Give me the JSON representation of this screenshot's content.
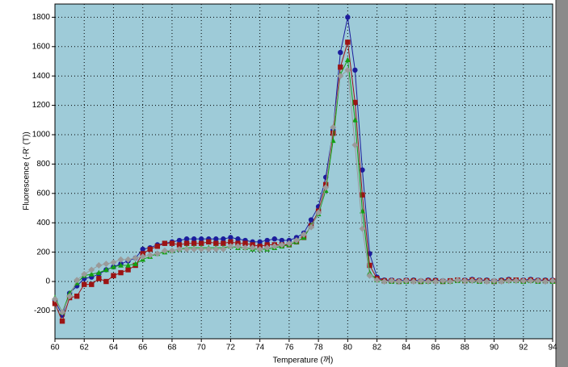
{
  "chart_data": {
    "type": "line",
    "xlabel": "Temperature (꺼)",
    "ylabel": "Fluorescence (-R' (T))",
    "xlim": [
      60,
      94
    ],
    "ylim": [
      -390,
      1890
    ],
    "xticks": [
      60,
      62,
      64,
      66,
      68,
      70,
      72,
      74,
      76,
      78,
      80,
      82,
      84,
      86,
      88,
      90,
      92,
      94
    ],
    "yticks": [
      -200,
      0,
      200,
      400,
      600,
      800,
      1000,
      1200,
      1400,
      1600,
      1800
    ],
    "grid": true,
    "x": [
      60,
      60.5,
      61,
      61.5,
      62,
      62.5,
      63,
      63.5,
      64,
      64.5,
      65,
      65.5,
      66,
      66.5,
      67,
      67.5,
      68,
      68.5,
      69,
      69.5,
      70,
      70.5,
      71,
      71.5,
      72,
      72.5,
      73,
      73.5,
      74,
      74.5,
      75,
      75.5,
      76,
      76.5,
      77,
      77.5,
      78,
      78.5,
      79,
      79.5,
      80,
      80.5,
      81,
      81.5,
      82,
      82.5,
      83,
      83.5,
      84,
      84.5,
      85,
      85.5,
      86,
      86.5,
      87,
      87.5,
      88,
      88.5,
      89,
      89.5,
      90,
      90.5,
      91,
      91.5,
      92,
      92.5,
      93,
      93.5,
      94
    ],
    "series": [
      {
        "color": "#1c1c9c",
        "marker": "circle",
        "values": [
          -130,
          -230,
          -80,
          -30,
          20,
          30,
          50,
          80,
          100,
          120,
          140,
          160,
          220,
          230,
          250,
          260,
          270,
          280,
          290,
          290,
          290,
          290,
          290,
          290,
          300,
          290,
          280,
          270,
          270,
          280,
          290,
          280,
          280,
          300,
          330,
          420,
          510,
          710,
          1030,
          1560,
          1800,
          1440,
          760,
          190,
          30,
          10,
          10,
          5,
          10,
          10,
          5,
          10,
          10,
          5,
          5,
          10,
          10,
          15,
          10,
          10,
          5,
          10,
          15,
          10,
          10,
          15,
          10,
          10,
          10
        ]
      },
      {
        "color": "#9c1414",
        "marker": "square",
        "values": [
          -150,
          -270,
          -110,
          -100,
          -20,
          -20,
          20,
          0,
          40,
          60,
          80,
          110,
          190,
          220,
          240,
          260,
          260,
          250,
          260,
          260,
          260,
          270,
          260,
          260,
          270,
          260,
          260,
          250,
          240,
          250,
          250,
          250,
          250,
          270,
          300,
          380,
          480,
          660,
          1010,
          1460,
          1630,
          1220,
          590,
          110,
          20,
          5,
          5,
          0,
          5,
          5,
          0,
          5,
          5,
          0,
          5,
          10,
          5,
          10,
          5,
          5,
          0,
          5,
          10,
          10,
          5,
          10,
          5,
          5,
          5
        ]
      },
      {
        "color": "#14a014",
        "marker": "triangle",
        "values": [
          -110,
          -210,
          -80,
          -10,
          40,
          50,
          60,
          80,
          100,
          110,
          110,
          120,
          150,
          170,
          190,
          200,
          210,
          220,
          230,
          230,
          230,
          230,
          230,
          230,
          240,
          230,
          230,
          220,
          220,
          220,
          230,
          240,
          250,
          270,
          300,
          380,
          460,
          620,
          960,
          1410,
          1510,
          1100,
          480,
          60,
          10,
          5,
          0,
          0,
          0,
          5,
          0,
          0,
          5,
          0,
          0,
          5,
          5,
          5,
          0,
          5,
          0,
          5,
          5,
          5,
          0,
          5,
          0,
          5,
          0
        ]
      },
      {
        "color": "#9a9a9a",
        "marker": "diamond",
        "values": [
          -120,
          -210,
          -100,
          10,
          50,
          80,
          110,
          120,
          130,
          150,
          150,
          160,
          170,
          180,
          190,
          210,
          210,
          220,
          220,
          220,
          220,
          220,
          220,
          220,
          240,
          240,
          230,
          230,
          220,
          230,
          240,
          250,
          260,
          280,
          320,
          370,
          470,
          640,
          1050,
          1400,
          1440,
          930,
          360,
          40,
          10,
          0,
          5,
          0,
          5,
          0,
          5,
          0,
          0,
          5,
          0,
          10,
          5,
          5,
          5,
          0,
          5,
          0,
          5,
          5,
          5,
          5,
          5,
          0,
          5
        ]
      }
    ]
  }
}
